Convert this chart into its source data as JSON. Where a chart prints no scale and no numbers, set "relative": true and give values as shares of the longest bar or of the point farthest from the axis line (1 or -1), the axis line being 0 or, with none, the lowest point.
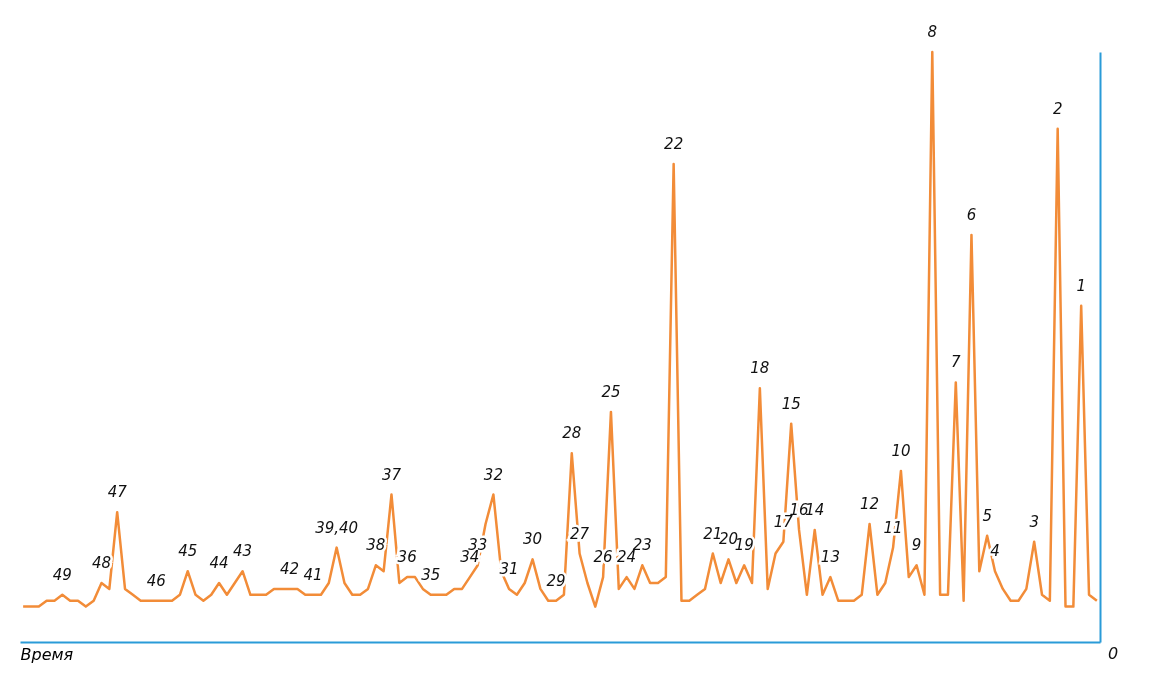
{
  "chart_data": {
    "type": "line",
    "relative": true,
    "xlabel": "Время",
    "annotations": [
      "0"
    ],
    "color": "#f28c38",
    "line_style": "solid",
    "categories": [
      null,
      null,
      null,
      null,
      null,
      "49",
      null,
      null,
      null,
      null,
      "48",
      null,
      "47",
      null,
      null,
      null,
      null,
      "46",
      null,
      null,
      null,
      "45",
      null,
      null,
      null,
      "44",
      null,
      null,
      "43",
      null,
      null,
      null,
      null,
      null,
      "42",
      null,
      null,
      "41",
      null,
      null,
      "39,40",
      null,
      null,
      null,
      null,
      "38",
      null,
      "37",
      null,
      "36",
      null,
      null,
      "35",
      null,
      null,
      null,
      null,
      "34",
      "33",
      null,
      "32",
      null,
      "31",
      null,
      null,
      "30",
      null,
      null,
      "29",
      null,
      "28",
      "27",
      null,
      null,
      "26",
      "25",
      null,
      "24",
      null,
      "23",
      null,
      null,
      null,
      "22",
      null,
      null,
      null,
      null,
      "21",
      null,
      "20",
      null,
      "19",
      null,
      "18",
      null,
      null,
      "17",
      "15",
      "16",
      null,
      "14",
      null,
      "13",
      null,
      null,
      null,
      null,
      "12",
      null,
      null,
      "11",
      "10",
      null,
      "9",
      null,
      "8",
      null,
      null,
      "7",
      null,
      "6",
      null,
      "5",
      "4",
      null,
      null,
      null,
      null,
      "3",
      null,
      null,
      "2",
      null,
      null,
      "1",
      null,
      null
    ],
    "values": [
      0.06,
      0.06,
      0.06,
      0.07,
      0.07,
      0.08,
      0.07,
      0.07,
      0.06,
      0.07,
      0.1,
      0.09,
      0.22,
      0.09,
      0.08,
      0.07,
      0.07,
      0.07,
      0.07,
      0.07,
      0.08,
      0.12,
      0.08,
      0.07,
      0.08,
      0.1,
      0.08,
      0.1,
      0.12,
      0.08,
      0.08,
      0.08,
      0.09,
      0.09,
      0.09,
      0.09,
      0.08,
      0.08,
      0.08,
      0.1,
      0.16,
      0.1,
      0.08,
      0.08,
      0.09,
      0.13,
      0.12,
      0.25,
      0.1,
      0.11,
      0.11,
      0.09,
      0.08,
      0.08,
      0.08,
      0.09,
      0.09,
      0.11,
      0.13,
      0.2,
      0.25,
      0.12,
      0.09,
      0.08,
      0.1,
      0.14,
      0.09,
      0.07,
      0.07,
      0.08,
      0.32,
      0.15,
      0.1,
      0.06,
      0.11,
      0.39,
      0.09,
      0.11,
      0.09,
      0.13,
      0.1,
      0.1,
      0.11,
      0.81,
      0.07,
      0.07,
      0.08,
      0.09,
      0.15,
      0.1,
      0.14,
      0.1,
      0.13,
      0.1,
      0.43,
      0.09,
      0.15,
      0.17,
      0.37,
      0.19,
      0.08,
      0.19,
      0.08,
      0.11,
      0.07,
      0.07,
      0.07,
      0.08,
      0.2,
      0.08,
      0.1,
      0.16,
      0.29,
      0.11,
      0.13,
      0.08,
      1.0,
      0.08,
      0.08,
      0.44,
      0.07,
      0.69,
      0.12,
      0.18,
      0.12,
      0.09,
      0.07,
      0.07,
      0.09,
      0.17,
      0.08,
      0.07,
      0.87,
      0.06,
      0.06,
      0.57,
      0.08,
      0.07
    ]
  }
}
